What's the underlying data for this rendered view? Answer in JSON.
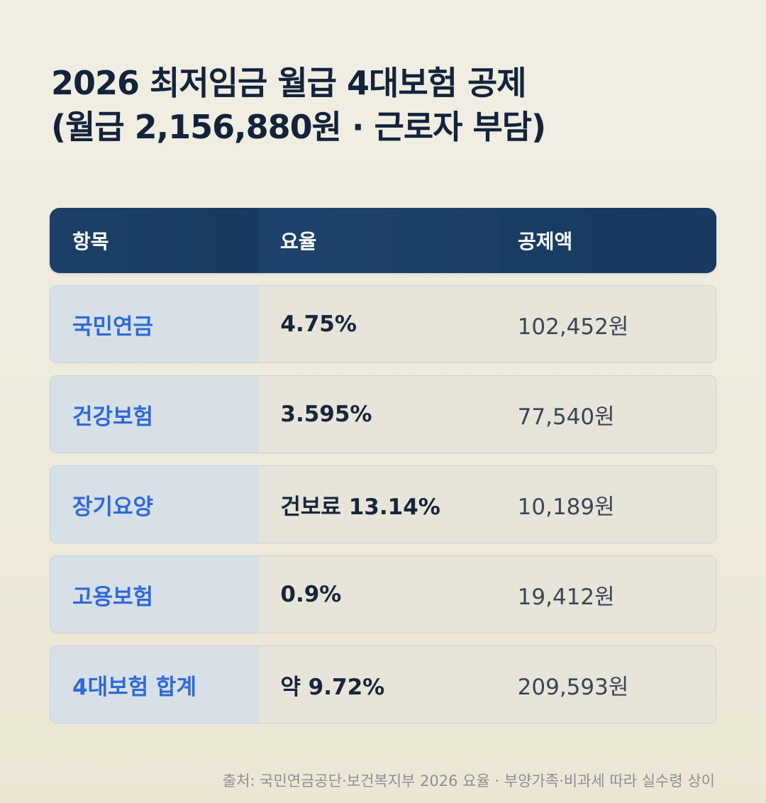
{
  "title": {
    "line1": "2026 최저임금 월급 4대보험 공제",
    "line2": "(월급 2,156,880원 · 근로자 부담)"
  },
  "table": {
    "headers": [
      "항목",
      "요율",
      "공제액"
    ],
    "rows": [
      {
        "item": "국민연금",
        "rate": "4.75%",
        "amount": "102,452원"
      },
      {
        "item": "건강보험",
        "rate": "3.595%",
        "amount": "77,540원"
      },
      {
        "item": "장기요양",
        "rate": "건보료 13.14%",
        "amount": "10,189원"
      },
      {
        "item": "고용보험",
        "rate": "0.9%",
        "amount": "19,412원"
      },
      {
        "item": "4대보험 합계",
        "rate": "약 9.72%",
        "amount": "209,593원"
      }
    ]
  },
  "footer": "출처: 국민연금공단·보건복지부 2026 요율 · 부양가족·비과세 따라 실수령 상이"
}
